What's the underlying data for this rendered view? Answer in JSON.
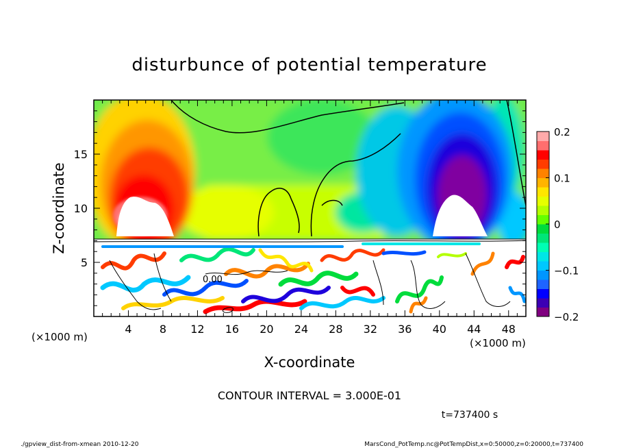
{
  "chart_data": {
    "type": "heatmap",
    "title": "disturbunce of potential temperature",
    "xlabel": "X-coordinate",
    "ylabel": "Z-coordinate",
    "x_unit_left": "(×1000 m)",
    "x_unit_right": "(×1000 m)",
    "xlim": [
      0,
      50
    ],
    "ylim": [
      0,
      20
    ],
    "x_ticks": [
      4,
      8,
      12,
      16,
      20,
      24,
      28,
      32,
      36,
      40,
      44,
      48
    ],
    "x_tick_labels": [
      "4",
      "8",
      "12",
      "16",
      "20",
      "24",
      "28",
      "32",
      "36",
      "40",
      "44",
      "48"
    ],
    "y_ticks": [
      5,
      10,
      15
    ],
    "y_tick_labels": [
      "5",
      "10",
      "15"
    ],
    "colorbar": {
      "range": [
        -0.2,
        0.2
      ],
      "ticks": [
        0.2,
        0.1,
        0,
        -0.1,
        -0.2
      ],
      "tick_labels": [
        "0.2",
        "0.1",
        "0",
        "−0.1",
        "−0.2"
      ],
      "colors": [
        "#800080",
        "#3c00b4",
        "#0000ff",
        "#1e64ff",
        "#0096ff",
        "#00c8ff",
        "#00e6e6",
        "#00ffb4",
        "#00e678",
        "#00dc3c",
        "#64ff00",
        "#b4ff00",
        "#e6ff00",
        "#ffe600",
        "#ffb400",
        "#ff8200",
        "#ff3c00",
        "#ff0000",
        "#ff6e6e",
        "#ffaaaa"
      ]
    },
    "features": [
      {
        "label": "warm anomaly",
        "x": 6.5,
        "z": 11,
        "value": 0.2
      },
      {
        "label": "cold anomaly",
        "x": 42,
        "z": 12,
        "value": -0.2
      }
    ],
    "contour_label": "0.00",
    "contour_interval_text": "CONTOUR INTERVAL = 3.000E-01",
    "time_text": "t=737400 s"
  },
  "footer": {
    "left": "./gpview_dist-from-xmean  2010-12-20",
    "right": "MarsCond_PotTemp.nc@PotTempDist,x=0:50000,z=0:20000,t=737400"
  }
}
